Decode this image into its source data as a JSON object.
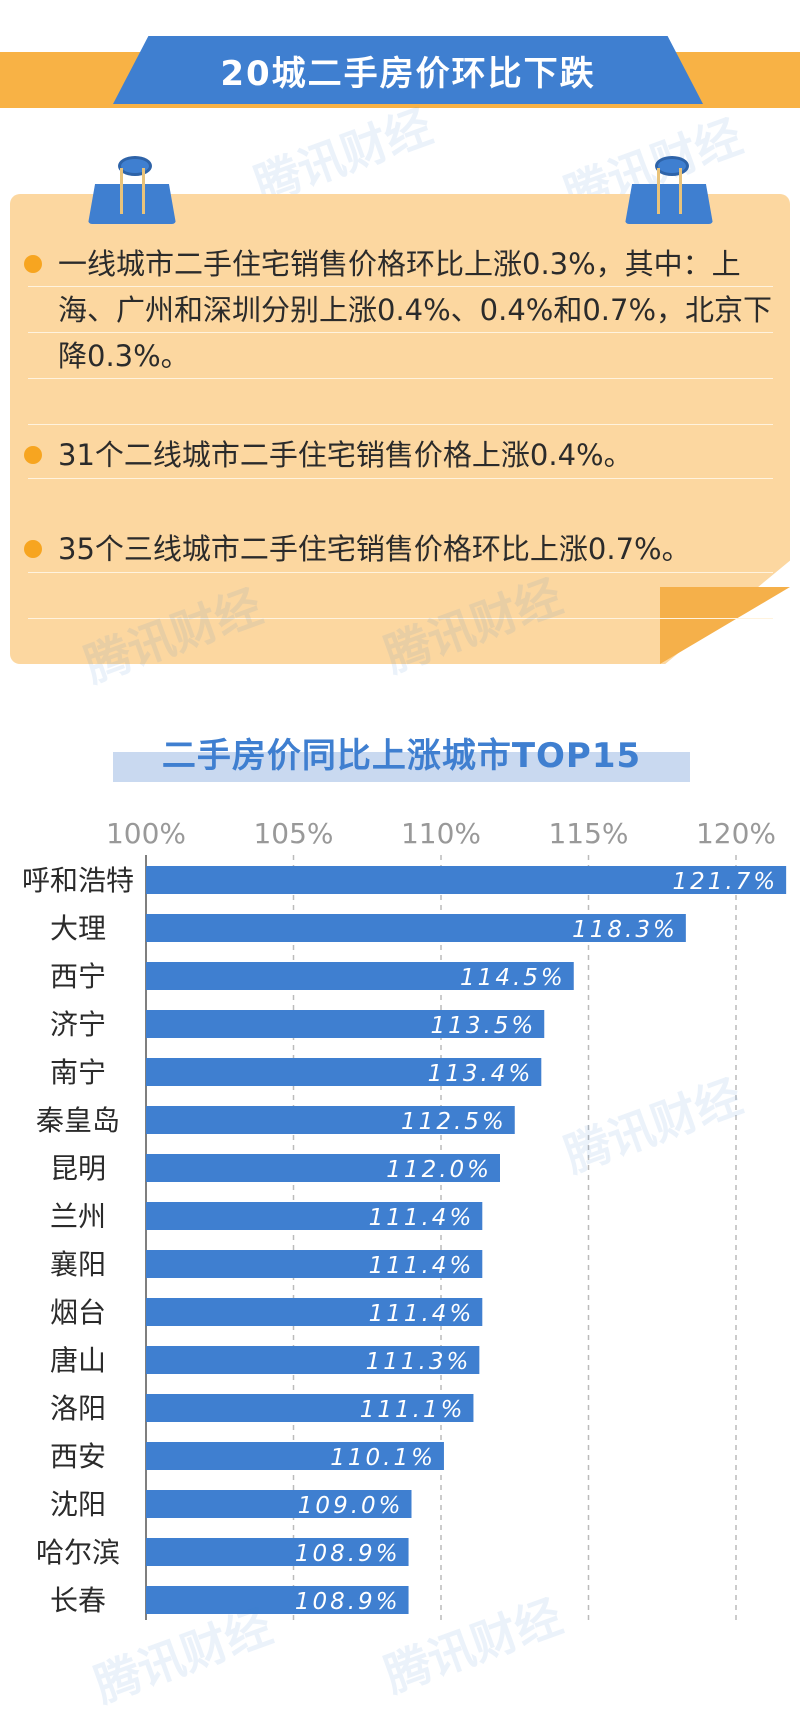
{
  "header": {
    "title": "20城二手房价环比下跌"
  },
  "watermark": "腾讯财经",
  "summary": {
    "items": [
      {
        "text": "一线城市二手住宅销售价格环比上涨0.3%，其中：上海、广州和深圳分别上涨0.4%、0.4%和0.7%，北京下降0.3%。"
      },
      {
        "text": "31个二线城市二手住宅销售价格上涨0.4%。"
      },
      {
        "text": "35个三线城市二手住宅销售价格环比上涨0.7%。"
      }
    ]
  },
  "colors": {
    "accent": "#3f7fd0",
    "orange": "#f8b245",
    "note_bg": "#fcd7a0",
    "bullet": "#f7a520"
  },
  "chart_data": {
    "type": "bar",
    "orientation": "horizontal",
    "title": "二手房价同比上涨城市TOP15",
    "categories": [
      "呼和浩特",
      "大理",
      "西宁",
      "济宁",
      "南宁",
      "秦皇岛",
      "昆明",
      "兰州",
      "襄阳",
      "烟台",
      "唐山",
      "洛阳",
      "西安",
      "沈阳",
      "哈尔滨",
      "长春"
    ],
    "values": [
      121.7,
      118.3,
      114.5,
      113.5,
      113.4,
      112.5,
      112.0,
      111.4,
      111.4,
      111.4,
      111.3,
      111.1,
      110.1,
      109.0,
      108.9,
      108.9
    ],
    "value_labels": [
      "121.7%",
      "118.3%",
      "114.5%",
      "113.5%",
      "113.4%",
      "112.5%",
      "112.0%",
      "111.4%",
      "111.4%",
      "111.4%",
      "111.3%",
      "111.1%",
      "110.1%",
      "109.0%",
      "108.9%",
      "108.9%"
    ],
    "ticks": [
      100,
      105,
      110,
      115,
      120
    ],
    "tick_labels": [
      "100%",
      "105%",
      "110%",
      "115%",
      "120%"
    ],
    "xlim": [
      100,
      121.7
    ],
    "grid": true,
    "axis_position": "top",
    "bar_color": "#3f7fd0"
  }
}
